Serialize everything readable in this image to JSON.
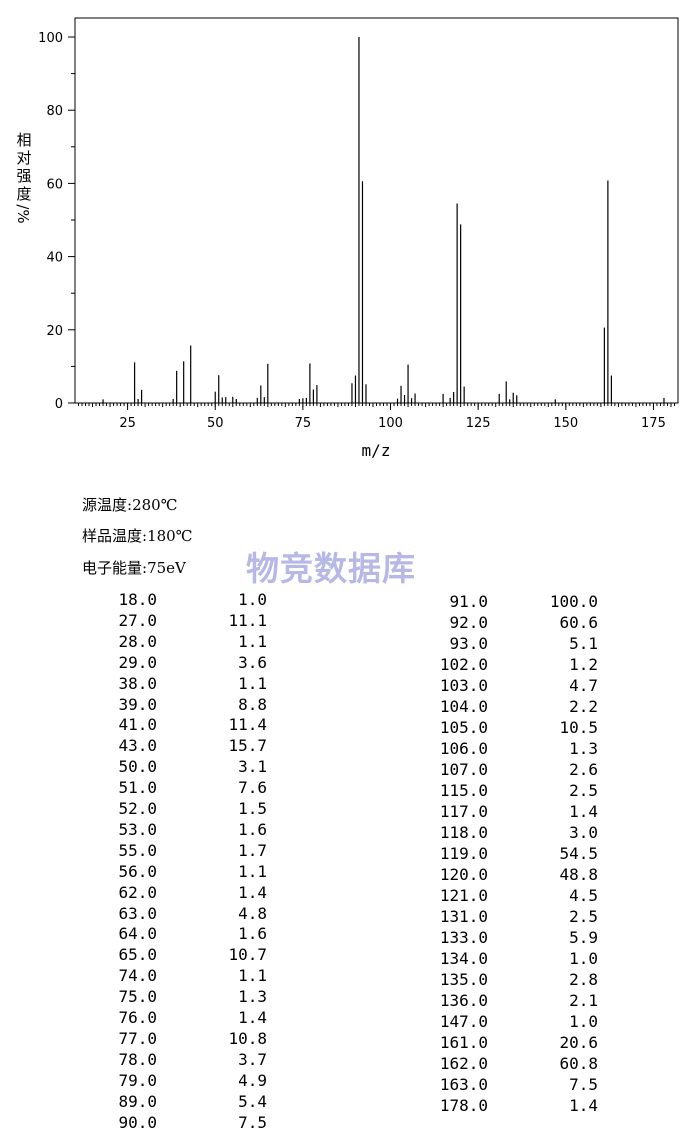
{
  "chart_data": {
    "type": "bar",
    "ylabel": "相对强度/%",
    "xlabel": "m/z",
    "xlim": [
      10,
      182
    ],
    "ylim": [
      0,
      100
    ],
    "x_ticks": [
      25,
      50,
      75,
      100,
      125,
      150,
      175
    ],
    "y_ticks": [
      0,
      20,
      40,
      60,
      80,
      100
    ],
    "x_tick_labels": [
      "25",
      "50",
      "75",
      "100",
      "125",
      "150",
      "175"
    ],
    "y_tick_labels": [
      "0",
      "20",
      "40",
      "60",
      "80",
      "100"
    ],
    "grid": false,
    "x": [
      18,
      27,
      28,
      29,
      38,
      39,
      41,
      43,
      50,
      51,
      52,
      53,
      55,
      56,
      62,
      63,
      64,
      65,
      74,
      75,
      76,
      77,
      78,
      79,
      89,
      90,
      91,
      92,
      93,
      102,
      103,
      104,
      105,
      106,
      107,
      115,
      117,
      118,
      119,
      120,
      121,
      131,
      133,
      134,
      135,
      136,
      147,
      161,
      162,
      163,
      178
    ],
    "values": [
      1.0,
      11.1,
      1.1,
      3.6,
      1.1,
      8.8,
      11.4,
      15.7,
      3.1,
      7.6,
      1.5,
      1.6,
      1.7,
      1.1,
      1.4,
      4.8,
      1.6,
      10.7,
      1.1,
      1.3,
      1.4,
      10.8,
      3.7,
      4.9,
      5.4,
      7.5,
      100.0,
      60.6,
      5.1,
      1.2,
      4.7,
      2.2,
      10.5,
      1.3,
      2.6,
      2.5,
      1.4,
      3.0,
      54.5,
      48.8,
      4.5,
      2.5,
      5.9,
      1.0,
      2.8,
      2.1,
      1.0,
      20.6,
      60.8,
      7.5,
      1.4
    ]
  },
  "conditions": [
    {
      "label": "源温度",
      "value": "280℃"
    },
    {
      "label": "样品温度",
      "value": "180℃"
    },
    {
      "label": "电子能量",
      "value": "75eV"
    }
  ],
  "watermark": "物竞数据库",
  "peak_table": {
    "left": [
      [
        "18.0",
        "1.0"
      ],
      [
        "27.0",
        "11.1"
      ],
      [
        "28.0",
        "1.1"
      ],
      [
        "29.0",
        "3.6"
      ],
      [
        "38.0",
        "1.1"
      ],
      [
        "39.0",
        "8.8"
      ],
      [
        "41.0",
        "11.4"
      ],
      [
        "43.0",
        "15.7"
      ],
      [
        "50.0",
        "3.1"
      ],
      [
        "51.0",
        "7.6"
      ],
      [
        "52.0",
        "1.5"
      ],
      [
        "53.0",
        "1.6"
      ],
      [
        "55.0",
        "1.7"
      ],
      [
        "56.0",
        "1.1"
      ],
      [
        "62.0",
        "1.4"
      ],
      [
        "63.0",
        "4.8"
      ],
      [
        "64.0",
        "1.6"
      ],
      [
        "65.0",
        "10.7"
      ],
      [
        "74.0",
        "1.1"
      ],
      [
        "75.0",
        "1.3"
      ],
      [
        "76.0",
        "1.4"
      ],
      [
        "77.0",
        "10.8"
      ],
      [
        "78.0",
        "3.7"
      ],
      [
        "79.0",
        "4.9"
      ],
      [
        "89.0",
        "5.4"
      ],
      [
        "90.0",
        "7.5"
      ]
    ],
    "right": [
      [
        "91.0",
        "100.0"
      ],
      [
        "92.0",
        "60.6"
      ],
      [
        "93.0",
        "5.1"
      ],
      [
        "102.0",
        "1.2"
      ],
      [
        "103.0",
        "4.7"
      ],
      [
        "104.0",
        "2.2"
      ],
      [
        "105.0",
        "10.5"
      ],
      [
        "106.0",
        "1.3"
      ],
      [
        "107.0",
        "2.6"
      ],
      [
        "115.0",
        "2.5"
      ],
      [
        "117.0",
        "1.4"
      ],
      [
        "118.0",
        "3.0"
      ],
      [
        "119.0",
        "54.5"
      ],
      [
        "120.0",
        "48.8"
      ],
      [
        "121.0",
        "4.5"
      ],
      [
        "131.0",
        "2.5"
      ],
      [
        "133.0",
        "5.9"
      ],
      [
        "134.0",
        "1.0"
      ],
      [
        "135.0",
        "2.8"
      ],
      [
        "136.0",
        "2.1"
      ],
      [
        "147.0",
        "1.0"
      ],
      [
        "161.0",
        "20.6"
      ],
      [
        "162.0",
        "60.8"
      ],
      [
        "163.0",
        "7.5"
      ],
      [
        "178.0",
        "1.4"
      ]
    ]
  }
}
